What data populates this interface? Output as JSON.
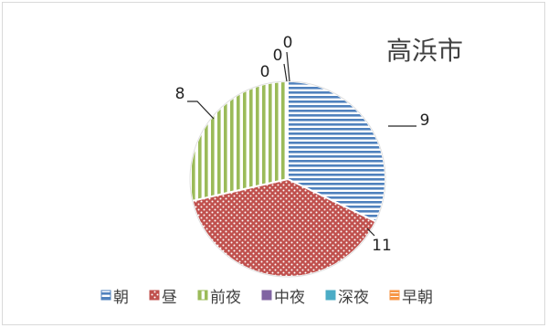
{
  "chart_data": {
    "type": "pie",
    "title": "高浜市",
    "start_angle_deg": 0,
    "direction": "clockwise",
    "legend_position": "bottom",
    "slices": [
      {
        "label": "朝",
        "value": 9,
        "data_label": "9",
        "color": "#4f81bd",
        "pattern": "horizontal-lines"
      },
      {
        "label": "昼",
        "value": 11,
        "data_label": "11",
        "color": "#c0504d",
        "pattern": "dots"
      },
      {
        "label": "前夜",
        "value": 8,
        "data_label": "8",
        "color": "#9bbb59",
        "pattern": "vertical-lines"
      },
      {
        "label": "中夜",
        "value": 0,
        "data_label": "0",
        "color": "#8064a2",
        "pattern": "solid"
      },
      {
        "label": "深夜",
        "value": 0,
        "data_label": "0",
        "color": "#4bacc6",
        "pattern": "solid"
      },
      {
        "label": "早朝",
        "value": 0,
        "data_label": "0",
        "color": "#f79646",
        "pattern": "grid"
      }
    ]
  }
}
